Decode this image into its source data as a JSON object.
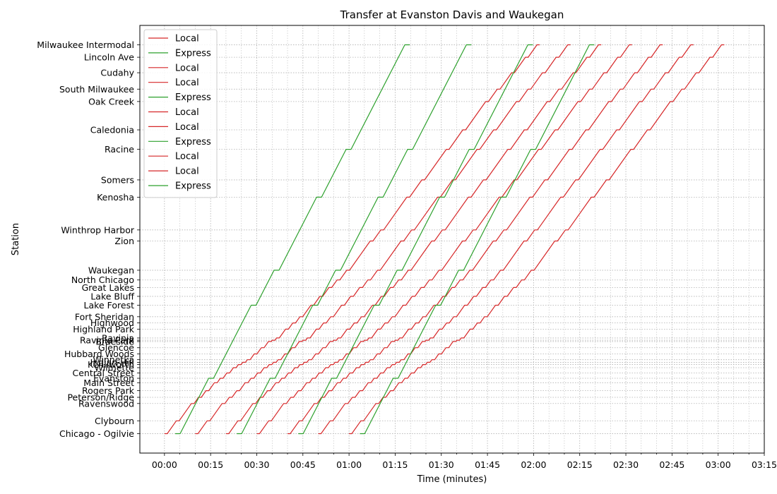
{
  "chart_data": {
    "type": "line",
    "title": "Transfer at Evanston Davis and Waukegan",
    "xlabel": "Time (minutes)",
    "ylabel": "Station",
    "x_unit": "minutes",
    "xlim": [
      -8,
      195
    ],
    "x_ticks": [
      0,
      15,
      30,
      45,
      60,
      75,
      90,
      105,
      120,
      135,
      150,
      165,
      180,
      195
    ],
    "x_tick_labels": [
      "00:00",
      "00:15",
      "00:30",
      "00:45",
      "01:00",
      "01:15",
      "01:30",
      "01:45",
      "02:00",
      "02:15",
      "02:30",
      "02:45",
      "03:00",
      "03:15"
    ],
    "grid": true,
    "legend_position": "upper-left",
    "stations": [
      {
        "name": "Chicago - Ogilvie",
        "pos": 0.0
      },
      {
        "name": "Clybourn",
        "pos": 2.9
      },
      {
        "name": "Ravenswood",
        "pos": 6.8
      },
      {
        "name": "Peterson/Ridge",
        "pos": 8.2
      },
      {
        "name": "Rogers Park",
        "pos": 9.7
      },
      {
        "name": "Main Street",
        "pos": 11.5
      },
      {
        "name": "Evanston",
        "pos": 12.5
      },
      {
        "name": "Central Street",
        "pos": 13.7
      },
      {
        "name": "Wilmette",
        "pos": 14.9
      },
      {
        "name": "Kenilworth",
        "pos": 15.6
      },
      {
        "name": "Indian Hill",
        "pos": 16.1
      },
      {
        "name": "Winnetka",
        "pos": 16.7
      },
      {
        "name": "Hubbard Woods",
        "pos": 18.0
      },
      {
        "name": "Glencoe",
        "pos": 19.4
      },
      {
        "name": "Braeside",
        "pos": 20.8
      },
      {
        "name": "Ravinia Park",
        "pos": 21.1
      },
      {
        "name": "Ravinia",
        "pos": 21.6
      },
      {
        "name": "Highland Park",
        "pos": 23.6
      },
      {
        "name": "Highwood",
        "pos": 25.0
      },
      {
        "name": "Fort Sheridan",
        "pos": 26.4
      },
      {
        "name": "Lake Forest",
        "pos": 29.0
      },
      {
        "name": "Lake Bluff",
        "pos": 31.0
      },
      {
        "name": "Great Lakes",
        "pos": 33.0
      },
      {
        "name": "North Chicago",
        "pos": 34.7
      },
      {
        "name": "Waukegan",
        "pos": 36.9
      },
      {
        "name": "Zion",
        "pos": 43.5
      },
      {
        "name": "Winthrop Harbor",
        "pos": 46.0
      },
      {
        "name": "Kenosha",
        "pos": 53.4
      },
      {
        "name": "Somers",
        "pos": 57.3
      },
      {
        "name": "Racine",
        "pos": 64.2
      },
      {
        "name": "Caledonia",
        "pos": 68.6
      },
      {
        "name": "Oak Creek",
        "pos": 75.0
      },
      {
        "name": "South Milwaukee",
        "pos": 77.8
      },
      {
        "name": "Cudahy",
        "pos": 81.5
      },
      {
        "name": "Lincoln Ave",
        "pos": 85.0
      },
      {
        "name": "Milwaukee Intermodal",
        "pos": 87.8
      }
    ],
    "series": [
      {
        "name": "Local",
        "type": "local",
        "start": 0,
        "color": "#d62728"
      },
      {
        "name": "Express",
        "type": "express",
        "start": 3.5,
        "color": "#2ca02c"
      },
      {
        "name": "Local",
        "type": "local",
        "start": 10,
        "color": "#d62728"
      },
      {
        "name": "Local",
        "type": "local",
        "start": 20,
        "color": "#d62728"
      },
      {
        "name": "Express",
        "type": "express",
        "start": 23.5,
        "color": "#2ca02c"
      },
      {
        "name": "Local",
        "type": "local",
        "start": 30,
        "color": "#d62728"
      },
      {
        "name": "Local",
        "type": "local",
        "start": 40,
        "color": "#d62728"
      },
      {
        "name": "Express",
        "type": "express",
        "start": 43.5,
        "color": "#2ca02c"
      },
      {
        "name": "Local",
        "type": "local",
        "start": 50,
        "color": "#d62728"
      },
      {
        "name": "Local",
        "type": "local",
        "start": 60,
        "color": "#d62728"
      },
      {
        "name": "Express",
        "type": "express",
        "start": 63.5,
        "color": "#2ca02c"
      }
    ]
  }
}
